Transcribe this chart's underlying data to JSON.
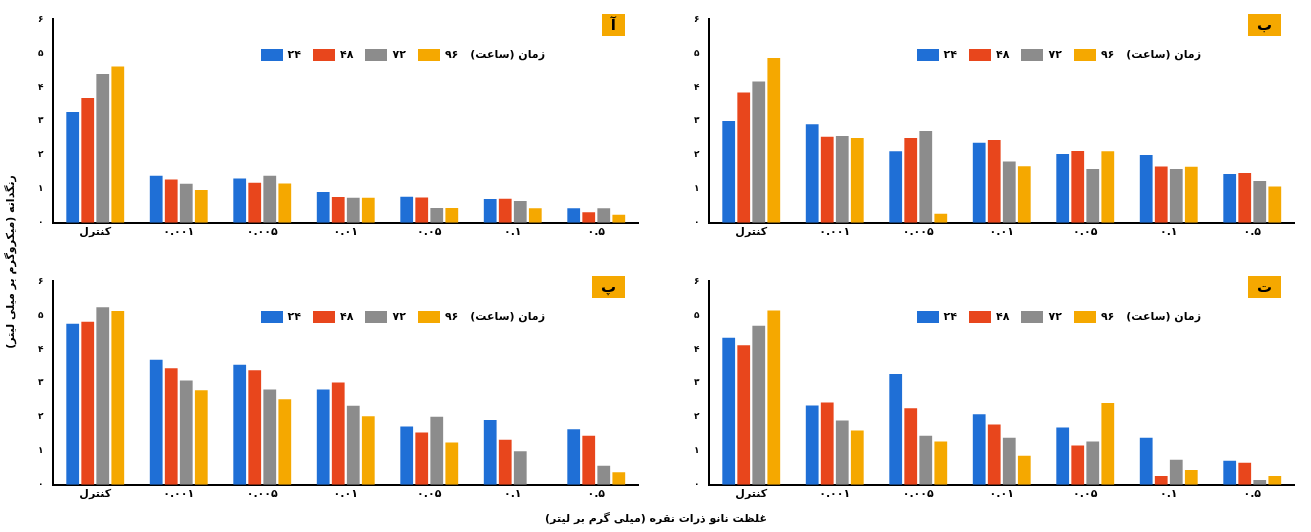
{
  "chart_data": [
    {
      "type": "bar",
      "title": "آ",
      "ylabel": "رنگدانه (میکروگرم بر میلی لیتر)",
      "legend_title": "زمان (ساعت)",
      "legend": "top right",
      "grid": false,
      "categories": [
        "کنترل",
        "۰.۰۰۱",
        "۰.۰۰۵",
        "۰.۰۱",
        "۰.۰۵",
        "۰.۱",
        "۰.۵"
      ],
      "ylim": [
        0,
        6
      ],
      "yticks": [
        {
          "value": 0,
          "label": "۰"
        },
        {
          "value": 1,
          "label": "۱"
        },
        {
          "value": 2,
          "label": "۲"
        },
        {
          "value": 3,
          "label": "۳"
        },
        {
          "value": 4,
          "label": "۴"
        },
        {
          "value": 5,
          "label": "۵"
        },
        {
          "value": 6,
          "label": "۶"
        }
      ],
      "series": [
        {
          "name": "۲۴",
          "color": "#1f6fd6",
          "values": [
            3.27,
            1.39,
            1.31,
            0.91,
            0.77,
            0.7,
            0.43
          ]
        },
        {
          "name": "۴۸",
          "color": "#e8461c",
          "values": [
            3.68,
            1.28,
            1.18,
            0.76,
            0.75,
            0.71,
            0.31
          ]
        },
        {
          "name": "۷۲",
          "color": "#8c8c8c",
          "values": [
            4.39,
            1.15,
            1.39,
            0.74,
            0.44,
            0.64,
            0.43
          ]
        },
        {
          "name": "۹۶",
          "color": "#f5a800",
          "values": [
            4.61,
            0.97,
            1.16,
            0.74,
            0.44,
            0.43,
            0.24
          ]
        }
      ]
    },
    {
      "type": "bar",
      "title": "ب",
      "legend_title": "زمان (ساعت)",
      "legend": "top right",
      "grid": false,
      "categories": [
        "کنترل",
        "۰.۰۰۱",
        "۰.۰۰۵",
        "۰.۰۱",
        "۰.۰۵",
        "۰.۱",
        "۰.۵"
      ],
      "ylim": [
        0,
        6
      ],
      "yticks": [
        {
          "value": 0,
          "label": "۰"
        },
        {
          "value": 1,
          "label": "۱"
        },
        {
          "value": 2,
          "label": "۲"
        },
        {
          "value": 3,
          "label": "۳"
        },
        {
          "value": 4,
          "label": "۴"
        },
        {
          "value": 5,
          "label": "۵"
        },
        {
          "value": 6,
          "label": "۶"
        }
      ],
      "series": [
        {
          "name": "۲۴",
          "color": "#1f6fd6",
          "values": [
            3.0,
            2.91,
            2.11,
            2.36,
            2.03,
            2.0,
            1.44
          ]
        },
        {
          "name": "۴۸",
          "color": "#e8461c",
          "values": [
            3.84,
            2.54,
            2.5,
            2.44,
            2.12,
            1.66,
            1.47
          ]
        },
        {
          "name": "۷۲",
          "color": "#8c8c8c",
          "values": [
            4.17,
            2.56,
            2.71,
            1.81,
            1.59,
            1.59,
            1.23
          ]
        },
        {
          "name": "۹۶",
          "color": "#f5a800",
          "values": [
            4.86,
            2.5,
            0.27,
            1.67,
            2.11,
            1.65,
            1.07
          ]
        }
      ]
    },
    {
      "type": "bar",
      "title": "پ",
      "xlabel": "غلظت نانو ذرات نقره (میلی گرم بر لیتر)",
      "legend_title": "زمان (ساعت)",
      "legend": "top right",
      "grid": false,
      "categories": [
        "کنترل",
        "۰.۰۰۱",
        "۰.۰۰۵",
        "۰.۰۱",
        "۰.۰۵",
        "۰.۱",
        "۰.۵"
      ],
      "ylim": [
        0,
        6
      ],
      "yticks": [
        {
          "value": 0,
          "label": "۰"
        },
        {
          "value": 1,
          "label": "۱"
        },
        {
          "value": 2,
          "label": "۲"
        },
        {
          "value": 3,
          "label": "۳"
        },
        {
          "value": 4,
          "label": "۴"
        },
        {
          "value": 5,
          "label": "۵"
        },
        {
          "value": 6,
          "label": "۶"
        }
      ],
      "series": [
        {
          "name": "۲۴",
          "color": "#1f6fd6",
          "values": [
            4.75,
            3.69,
            3.54,
            2.81,
            1.72,
            1.91,
            1.64
          ]
        },
        {
          "name": "۴۸",
          "color": "#e8461c",
          "values": [
            4.81,
            3.44,
            3.38,
            3.02,
            1.54,
            1.33,
            1.45
          ]
        },
        {
          "name": "۷۲",
          "color": "#8c8c8c",
          "values": [
            5.24,
            3.08,
            2.81,
            2.33,
            2.01,
            0.99,
            0.56
          ]
        },
        {
          "name": "۹۶",
          "color": "#f5a800",
          "values": [
            5.13,
            2.79,
            2.52,
            2.02,
            1.25,
            null,
            0.37
          ]
        }
      ]
    },
    {
      "type": "bar",
      "title": "ت",
      "legend_title": "زمان (ساعت)",
      "legend": "top right",
      "grid": false,
      "categories": [
        "کنترل",
        "۰.۰۰۱",
        "۰.۰۰۵",
        "۰.۰۱",
        "۰.۰۵",
        "۰.۱",
        "۰.۵"
      ],
      "ylim": [
        0,
        6
      ],
      "yticks": [
        {
          "value": 0,
          "label": "۰"
        },
        {
          "value": 1,
          "label": "۱"
        },
        {
          "value": 2,
          "label": "۲"
        },
        {
          "value": 3,
          "label": "۳"
        },
        {
          "value": 4,
          "label": "۴"
        },
        {
          "value": 5,
          "label": "۵"
        },
        {
          "value": 6,
          "label": "۶"
        }
      ],
      "series": [
        {
          "name": "۲۴",
          "color": "#1f6fd6",
          "values": [
            4.34,
            2.34,
            3.27,
            2.08,
            1.69,
            1.39,
            0.71
          ]
        },
        {
          "name": "۴۸",
          "color": "#e8461c",
          "values": [
            4.12,
            2.43,
            2.26,
            1.78,
            1.16,
            0.26,
            0.65
          ]
        },
        {
          "name": "۷۲",
          "color": "#8c8c8c",
          "values": [
            4.69,
            1.9,
            1.45,
            1.39,
            1.28,
            0.74,
            0.14
          ]
        },
        {
          "name": "۹۶",
          "color": "#f5a800",
          "values": [
            5.14,
            1.6,
            1.28,
            0.86,
            2.41,
            0.44,
            0.26
          ]
        }
      ]
    }
  ]
}
